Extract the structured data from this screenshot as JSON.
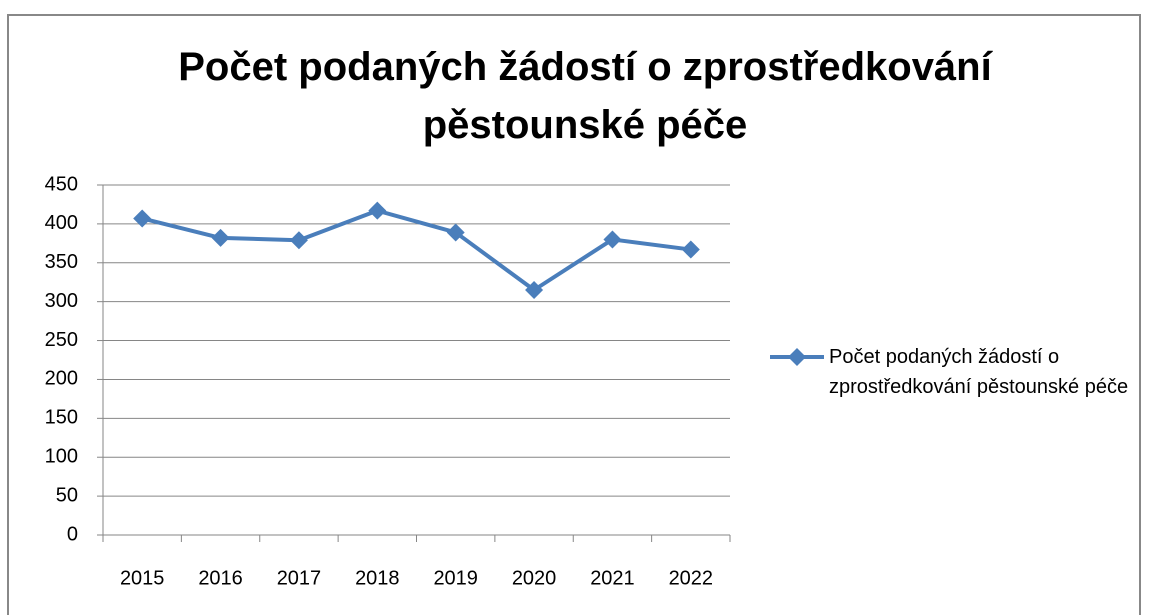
{
  "chart_data": {
    "type": "line",
    "title": "Počet podaných žádostí o zprostředkování pěstounské péče",
    "categories": [
      "2015",
      "2016",
      "2017",
      "2018",
      "2019",
      "2020",
      "2021",
      "2022"
    ],
    "series": [
      {
        "name": "Počet podaných žádostí o zprostředkování pěstounské péče",
        "color": "#4a7ebb",
        "values": [
          407,
          382,
          379,
          417,
          389,
          315,
          380,
          367
        ]
      }
    ],
    "ylim": [
      0,
      450
    ],
    "yticks": [
      0,
      50,
      100,
      150,
      200,
      250,
      300,
      350,
      400,
      450
    ],
    "grid": true,
    "legend": "right"
  }
}
